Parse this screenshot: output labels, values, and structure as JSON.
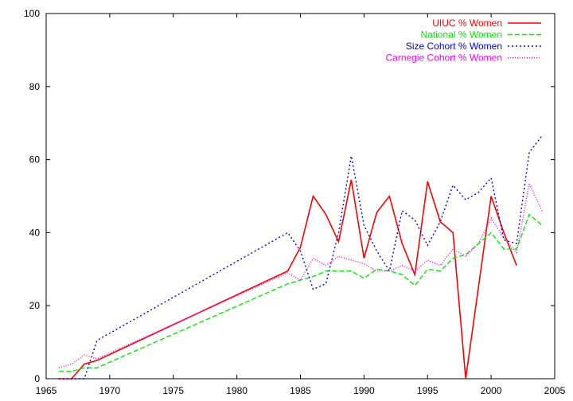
{
  "chart_data": {
    "type": "line",
    "title": "",
    "xlabel": "",
    "ylabel": "",
    "xlim": [
      1965,
      2005
    ],
    "ylim": [
      0,
      100
    ],
    "xticks": [
      "1965",
      "1970",
      "1975",
      "1980",
      "1985",
      "1990",
      "1995",
      "2000",
      "2005"
    ],
    "yticks": [
      "0",
      "20",
      "40",
      "60",
      "80",
      "100"
    ],
    "grid": false,
    "legend_position": "top-right",
    "series": [
      {
        "name": "UIUC % Women",
        "color": "#ff0000",
        "dash": "solid",
        "points": [
          [
            1966,
            0
          ],
          [
            1967,
            0
          ],
          [
            1968,
            4
          ],
          [
            1969,
            5
          ],
          [
            1984,
            29.5
          ],
          [
            1985,
            36
          ],
          [
            1986,
            50
          ],
          [
            1987,
            45
          ],
          [
            1988,
            37.5
          ],
          [
            1989,
            54.5
          ],
          [
            1990,
            33
          ],
          [
            1991,
            45.5
          ],
          [
            1992,
            50
          ],
          [
            1993,
            37
          ],
          [
            1994,
            28.5
          ],
          [
            1995,
            54
          ],
          [
            1996,
            43
          ],
          [
            1997,
            40
          ],
          [
            1998,
            0
          ],
          [
            2000,
            50
          ],
          [
            2001,
            40
          ],
          [
            2002,
            31
          ]
        ]
      },
      {
        "name": "National % Women",
        "color": "#00ee00",
        "dash": "dashed",
        "points": [
          [
            1966,
            2
          ],
          [
            1967,
            2
          ],
          [
            1968,
            3
          ],
          [
            1969,
            3
          ],
          [
            1984,
            26
          ],
          [
            1985,
            27
          ],
          [
            1986,
            28
          ],
          [
            1987,
            29.5
          ],
          [
            1988,
            29.5
          ],
          [
            1989,
            29.5
          ],
          [
            1990,
            27.5
          ],
          [
            1991,
            30
          ],
          [
            1992,
            29.5
          ],
          [
            1993,
            28.5
          ],
          [
            1994,
            25.5
          ],
          [
            1995,
            30
          ],
          [
            1996,
            29.5
          ],
          [
            1997,
            33
          ],
          [
            1998,
            34
          ],
          [
            1999,
            37
          ],
          [
            2000,
            40
          ],
          [
            2001,
            35.5
          ],
          [
            2002,
            35.5
          ],
          [
            2003,
            45
          ],
          [
            2004,
            42
          ]
        ]
      },
      {
        "name": "Size Cohort % Women",
        "color": "#0000ee",
        "dash": "dotted",
        "points": [
          [
            1966,
            0
          ],
          [
            1967,
            0
          ],
          [
            1968,
            0
          ],
          [
            1969,
            10.5
          ],
          [
            1984,
            40
          ],
          [
            1985,
            35
          ],
          [
            1986,
            24.5
          ],
          [
            1987,
            26
          ],
          [
            1988,
            40
          ],
          [
            1989,
            61
          ],
          [
            1990,
            42
          ],
          [
            1991,
            35
          ],
          [
            1992,
            29.5
          ],
          [
            1993,
            46
          ],
          [
            1994,
            43.5
          ],
          [
            1995,
            36.5
          ],
          [
            1996,
            43
          ],
          [
            1997,
            53
          ],
          [
            1998,
            49
          ],
          [
            1999,
            51
          ],
          [
            2000,
            55
          ],
          [
            2001,
            38
          ],
          [
            2002,
            37
          ],
          [
            2003,
            62
          ],
          [
            2004,
            66.5
          ]
        ]
      },
      {
        "name": "Carnegie Cohort % Women",
        "color": "#ff00ff",
        "dash": "densedot",
        "points": [
          [
            1966,
            3
          ],
          [
            1967,
            4
          ],
          [
            1968,
            6.5
          ],
          [
            1969,
            5.5
          ],
          [
            1984,
            29
          ],
          [
            1985,
            27
          ],
          [
            1986,
            33
          ],
          [
            1987,
            31
          ],
          [
            1988,
            33.5
          ],
          [
            1989,
            32.5
          ],
          [
            1990,
            31.5
          ],
          [
            1991,
            29.5
          ],
          [
            1992,
            29.5
          ],
          [
            1993,
            31
          ],
          [
            1994,
            29.5
          ],
          [
            1995,
            32.5
          ],
          [
            1996,
            31
          ],
          [
            1997,
            35.5
          ],
          [
            1998,
            33.5
          ],
          [
            1999,
            37
          ],
          [
            2000,
            44
          ],
          [
            2001,
            38.5
          ],
          [
            2002,
            34.5
          ],
          [
            2003,
            53.5
          ],
          [
            2004,
            46
          ]
        ]
      }
    ]
  }
}
